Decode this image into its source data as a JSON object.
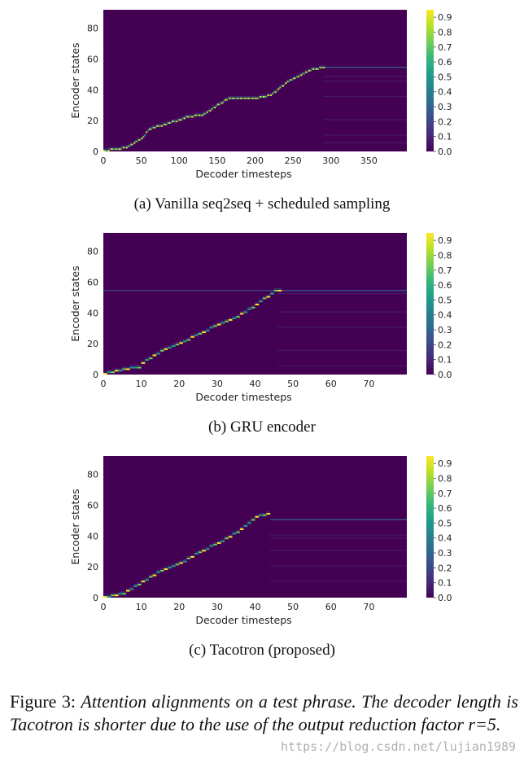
{
  "colors": {
    "background": "#440154",
    "colormap": [
      "#440154",
      "#482878",
      "#3e4989",
      "#31688e",
      "#26828e",
      "#1f9e89",
      "#35b779",
      "#6ece58",
      "#b5de2b",
      "#fde725"
    ]
  },
  "chart_data": [
    {
      "type": "heatmap",
      "subcaption": "(a)  Vanilla seq2seq + scheduled sampling",
      "xlabel": "Decoder timesteps",
      "ylabel": "Encoder states",
      "xlim": [
        0,
        400
      ],
      "ylim": [
        0,
        92
      ],
      "x_ticks": [
        0,
        50,
        100,
        150,
        200,
        250,
        300,
        350
      ],
      "y_ticks": [
        0,
        20,
        40,
        60,
        80
      ],
      "colorbar_ticks": [
        "0.0",
        "0.1",
        "0.2",
        "0.3",
        "0.4",
        "0.5",
        "0.6",
        "0.7",
        "0.8",
        "0.9"
      ],
      "alignment_path": [
        [
          0,
          0
        ],
        [
          30,
          2
        ],
        [
          50,
          8
        ],
        [
          60,
          14
        ],
        [
          80,
          17
        ],
        [
          100,
          20
        ],
        [
          110,
          22
        ],
        [
          130,
          23
        ],
        [
          145,
          28
        ],
        [
          165,
          34
        ],
        [
          185,
          34
        ],
        [
          200,
          34
        ],
        [
          220,
          36
        ],
        [
          240,
          44
        ],
        [
          255,
          48
        ],
        [
          275,
          53
        ],
        [
          290,
          54
        ]
      ],
      "tail": {
        "start": 290,
        "end": 400,
        "rows": [
          54,
          48,
          45,
          35,
          20,
          10,
          5
        ]
      }
    },
    {
      "type": "heatmap",
      "subcaption": "(b)  GRU encoder",
      "xlabel": "Decoder timesteps",
      "ylabel": "Encoder states",
      "xlim": [
        0,
        80
      ],
      "ylim": [
        0,
        92
      ],
      "x_ticks": [
        0,
        10,
        20,
        30,
        40,
        50,
        60,
        70
      ],
      "y_ticks": [
        0,
        20,
        40,
        60,
        80
      ],
      "colorbar_ticks": [
        "0.0",
        "0.1",
        "0.2",
        "0.3",
        "0.4",
        "0.5",
        "0.6",
        "0.7",
        "0.8",
        "0.9"
      ],
      "alignment_path": [
        [
          0,
          0
        ],
        [
          5,
          3
        ],
        [
          9,
          4
        ],
        [
          10,
          7
        ],
        [
          15,
          15
        ],
        [
          20,
          20
        ],
        [
          25,
          26
        ],
        [
          30,
          32
        ],
        [
          35,
          37
        ],
        [
          40,
          45
        ],
        [
          45,
          54
        ],
        [
          46,
          54
        ]
      ],
      "horizontal_band": 54,
      "tail": {
        "start": 46,
        "end": 80,
        "rows": [
          54,
          52,
          40,
          30,
          15,
          5
        ]
      }
    },
    {
      "type": "heatmap",
      "subcaption": "(c)  Tacotron (proposed)",
      "xlabel": "Decoder timesteps",
      "ylabel": "Encoder states",
      "xlim": [
        0,
        80
      ],
      "ylim": [
        0,
        92
      ],
      "x_ticks": [
        0,
        10,
        20,
        30,
        40,
        50,
        60,
        70
      ],
      "y_ticks": [
        0,
        20,
        40,
        60,
        80
      ],
      "colorbar_ticks": [
        "0.0",
        "0.1",
        "0.2",
        "0.3",
        "0.4",
        "0.5",
        "0.6",
        "0.7",
        "0.8",
        "0.9"
      ],
      "alignment_path": [
        [
          0,
          0
        ],
        [
          5,
          2
        ],
        [
          10,
          10
        ],
        [
          15,
          17
        ],
        [
          20,
          22
        ],
        [
          25,
          29
        ],
        [
          30,
          35
        ],
        [
          35,
          42
        ],
        [
          40,
          52
        ],
        [
          43,
          54
        ]
      ],
      "tail": {
        "start": 44,
        "end": 80,
        "rows": [
          50,
          40,
          38,
          30,
          20,
          10
        ]
      }
    }
  ],
  "caption": {
    "label": "Figure 3:",
    "text": "Attention alignments on a test phrase. The decoder length is Tacotron is shorter due to the use of the output reduction factor r=5."
  },
  "watermark": "https://blog.csdn.net/lujian1989"
}
